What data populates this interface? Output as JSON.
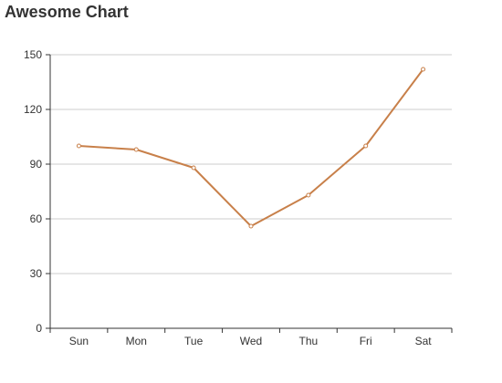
{
  "chart_data": {
    "type": "line",
    "title": "Awesome Chart",
    "categories": [
      "Sun",
      "Mon",
      "Tue",
      "Wed",
      "Thu",
      "Fri",
      "Sat"
    ],
    "series": [
      {
        "values": [
          100,
          98,
          88,
          56,
          73,
          100,
          142
        ]
      }
    ],
    "ylim": [
      0,
      150
    ],
    "yticks": [
      "0",
      "30",
      "60",
      "90",
      "120",
      "150"
    ],
    "grid": true,
    "legend": "none",
    "colors": {
      "line": "#c8804a",
      "grid": "#cccccc",
      "axis": "#333333"
    }
  }
}
